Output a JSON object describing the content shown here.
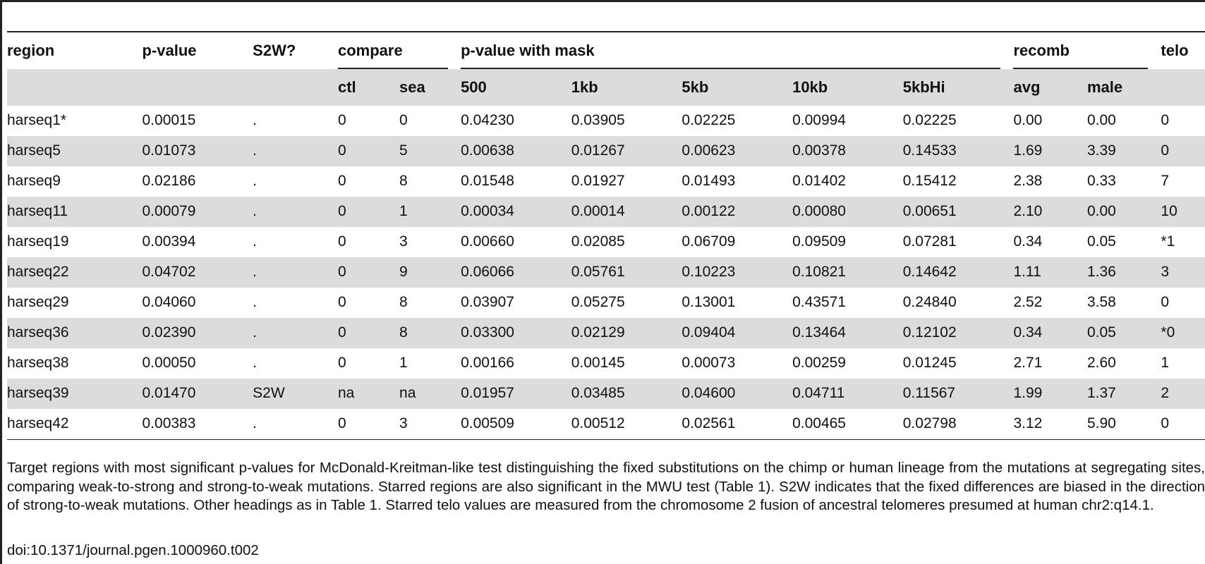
{
  "table": {
    "header_row1": {
      "region": "region",
      "p_value": "p-value",
      "s2w": "S2W?",
      "compare": "compare",
      "p_value_with_mask": "p-value with mask",
      "recomb": "recomb",
      "telo": "telo"
    },
    "header_row2": {
      "ctl": "ctl",
      "sea": "sea",
      "m500": "500",
      "m1kb": "1kb",
      "m5kb": "5kb",
      "m10kb": "10kb",
      "m5kbHi": "5kbHi",
      "avg": "avg",
      "male": "male"
    },
    "rows": [
      {
        "region": "harseq1*",
        "p_value": "0.00015",
        "s2w": ".",
        "ctl": "0",
        "sea": "0",
        "m500": "0.04230",
        "m1kb": "0.03905",
        "m5kb": "0.02225",
        "m10kb": "0.00994",
        "m5kbHi": "0.02225",
        "avg": "0.00",
        "male": "0.00",
        "telo": "0"
      },
      {
        "region": "harseq5",
        "p_value": "0.01073",
        "s2w": ".",
        "ctl": "0",
        "sea": "5",
        "m500": "0.00638",
        "m1kb": "0.01267",
        "m5kb": "0.00623",
        "m10kb": "0.00378",
        "m5kbHi": "0.14533",
        "avg": "1.69",
        "male": "3.39",
        "telo": "0"
      },
      {
        "region": "harseq9",
        "p_value": "0.02186",
        "s2w": ".",
        "ctl": "0",
        "sea": "8",
        "m500": "0.01548",
        "m1kb": "0.01927",
        "m5kb": "0.01493",
        "m10kb": "0.01402",
        "m5kbHi": "0.15412",
        "avg": "2.38",
        "male": "0.33",
        "telo": "7"
      },
      {
        "region": "harseq11",
        "p_value": "0.00079",
        "s2w": ".",
        "ctl": "0",
        "sea": "1",
        "m500": "0.00034",
        "m1kb": "0.00014",
        "m5kb": "0.00122",
        "m10kb": "0.00080",
        "m5kbHi": "0.00651",
        "avg": "2.10",
        "male": "0.00",
        "telo": "10"
      },
      {
        "region": "harseq19",
        "p_value": "0.00394",
        "s2w": ".",
        "ctl": "0",
        "sea": "3",
        "m500": "0.00660",
        "m1kb": "0.02085",
        "m5kb": "0.06709",
        "m10kb": "0.09509",
        "m5kbHi": "0.07281",
        "avg": "0.34",
        "male": "0.05",
        "telo": "*1"
      },
      {
        "region": "harseq22",
        "p_value": "0.04702",
        "s2w": ".",
        "ctl": "0",
        "sea": "9",
        "m500": "0.06066",
        "m1kb": "0.05761",
        "m5kb": "0.10223",
        "m10kb": "0.10821",
        "m5kbHi": "0.14642",
        "avg": "1.11",
        "male": "1.36",
        "telo": "3"
      },
      {
        "region": "harseq29",
        "p_value": "0.04060",
        "s2w": ".",
        "ctl": "0",
        "sea": "8",
        "m500": "0.03907",
        "m1kb": "0.05275",
        "m5kb": "0.13001",
        "m10kb": "0.43571",
        "m5kbHi": "0.24840",
        "avg": "2.52",
        "male": "3.58",
        "telo": "0"
      },
      {
        "region": "harseq36",
        "p_value": "0.02390",
        "s2w": ".",
        "ctl": "0",
        "sea": "8",
        "m500": "0.03300",
        "m1kb": "0.02129",
        "m5kb": "0.09404",
        "m10kb": "0.13464",
        "m5kbHi": "0.12102",
        "avg": "0.34",
        "male": "0.05",
        "telo": "*0"
      },
      {
        "region": "harseq38",
        "p_value": "0.00050",
        "s2w": ".",
        "ctl": "0",
        "sea": "1",
        "m500": "0.00166",
        "m1kb": "0.00145",
        "m5kb": "0.00073",
        "m10kb": "0.00259",
        "m5kbHi": "0.01245",
        "avg": "2.71",
        "male": "2.60",
        "telo": "1"
      },
      {
        "region": "harseq39",
        "p_value": "0.01470",
        "s2w": "S2W",
        "ctl": "na",
        "sea": "na",
        "m500": "0.01957",
        "m1kb": "0.03485",
        "m5kb": "0.04600",
        "m10kb": "0.04711",
        "m5kbHi": "0.11567",
        "avg": "1.99",
        "male": "1.37",
        "telo": "2"
      },
      {
        "region": "harseq42",
        "p_value": "0.00383",
        "s2w": ".",
        "ctl": "0",
        "sea": "3",
        "m500": "0.00509",
        "m1kb": "0.00512",
        "m5kb": "0.02561",
        "m10kb": "0.00465",
        "m5kbHi": "0.02798",
        "avg": "3.12",
        "male": "5.90",
        "telo": "0"
      }
    ]
  },
  "caption": "Target regions with most significant p-values for McDonald-Kreitman-like test distinguishing the fixed substitutions on the chimp or human lineage from the mutations at segregating sites, comparing weak-to-strong and strong-to-weak mutations. Starred regions are also significant in the MWU test (Table 1). S2W indicates that the fixed differences are biased in the direction of strong-to-weak mutations. Other headings as in Table 1. Starred telo values are measured from the chromosome 2 fusion of ancestral telomeres presumed at human chr2:q14.1.",
  "doi": "doi:10.1371/journal.pgen.1000960.t002"
}
